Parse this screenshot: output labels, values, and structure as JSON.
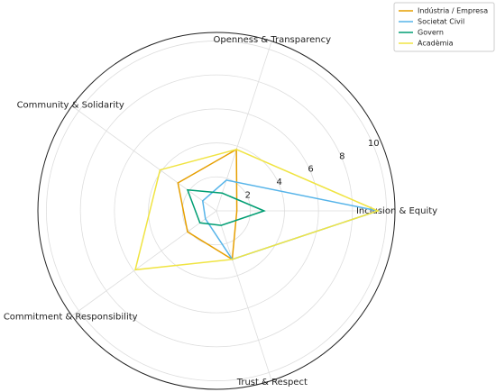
{
  "chart_data": {
    "type": "radar",
    "categories": [
      "Inclusion & Equity",
      "Openness & Transparency",
      "Community & Solidarity",
      "Commitment & Responsibility",
      "Trust & Respect"
    ],
    "series": [
      {
        "name": "Indústria / Empresa",
        "color": "#e69f00",
        "values": [
          1.2,
          3.8,
          2.8,
          2.1,
          3.0
        ]
      },
      {
        "name": "Societat Civil",
        "color": "#56b4e9",
        "values": [
          9.5,
          1.9,
          1.0,
          0.8,
          3.0
        ]
      },
      {
        "name": "Govern",
        "color": "#009e73",
        "values": [
          2.8,
          1.1,
          2.1,
          1.2,
          0.9
        ]
      },
      {
        "name": "Acadèmia",
        "color": "#f0e442",
        "values": [
          9.5,
          3.8,
          4.1,
          5.9,
          3.0
        ]
      }
    ],
    "rlim": [
      0,
      10.5
    ],
    "rticks": [
      2,
      4,
      6,
      8,
      10
    ],
    "grid": true,
    "legend": "upper right"
  }
}
